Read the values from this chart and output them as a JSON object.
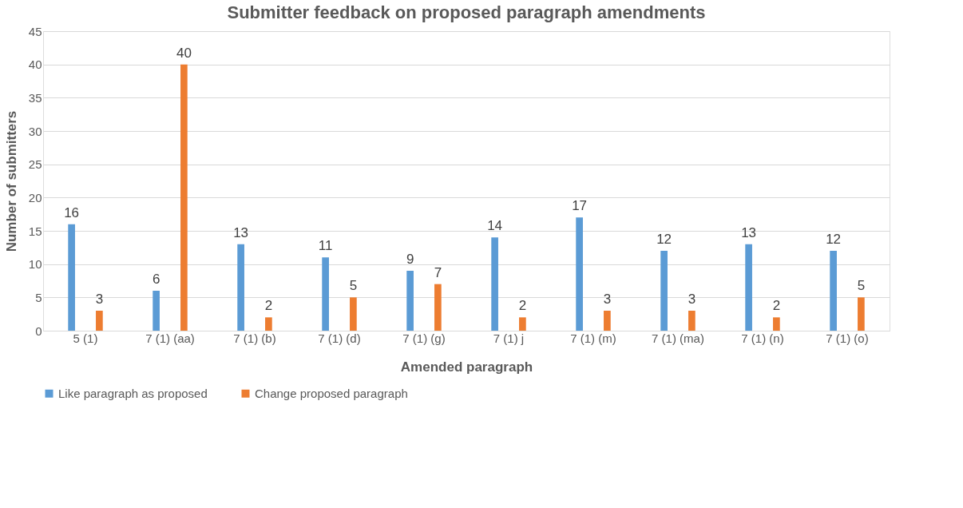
{
  "chart_data": {
    "type": "bar",
    "title": "Submitter feedback on proposed paragraph amendments",
    "xlabel": "Amended paragraph",
    "ylabel": "Number of submitters",
    "categories": [
      "5 (1)",
      "7 (1) (aa)",
      "7 (1) (b)",
      "7 (1) (d)",
      "7 (1) (g)",
      "7 (1) j",
      "7 (1) (m)",
      "7 (1) (ma)",
      "7 (1) (n)",
      "7 (1) (o)"
    ],
    "series": [
      {
        "name": "Like paragraph as proposed",
        "color": "#5b9bd5",
        "values": [
          16,
          6,
          13,
          11,
          9,
          14,
          17,
          12,
          13,
          12
        ]
      },
      {
        "name": "Change proposed paragraph",
        "color": "#ed7d31",
        "values": [
          3,
          40,
          2,
          5,
          7,
          2,
          3,
          3,
          2,
          5
        ]
      }
    ],
    "ylim": [
      0,
      45
    ],
    "yticks": [
      0,
      5,
      10,
      15,
      20,
      25,
      30,
      35,
      40,
      45
    ],
    "grid": "y",
    "legend": "bottom",
    "data_labels": true
  }
}
